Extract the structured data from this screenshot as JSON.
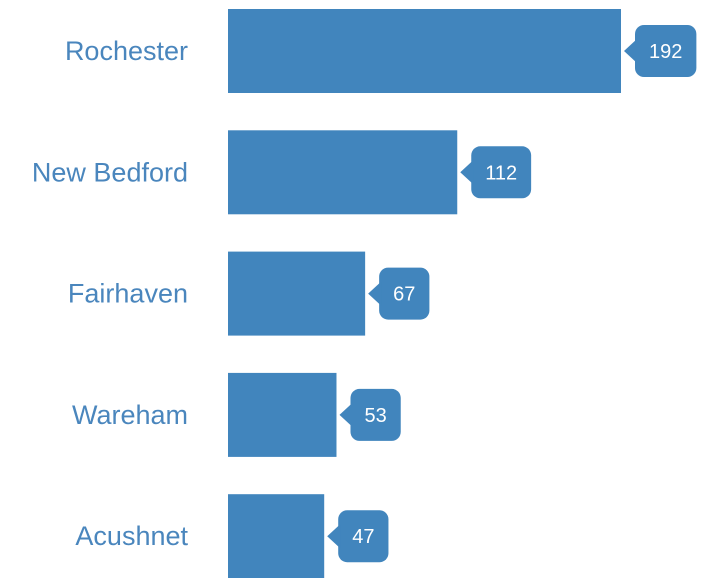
{
  "chart_data": {
    "type": "bar",
    "orientation": "horizontal",
    "categories": [
      "Rochester",
      "New Bedford",
      "Fairhaven",
      "Wareham",
      "Acushnet"
    ],
    "values": [
      192,
      112,
      67,
      53,
      47
    ],
    "color": "#4185bd"
  }
}
